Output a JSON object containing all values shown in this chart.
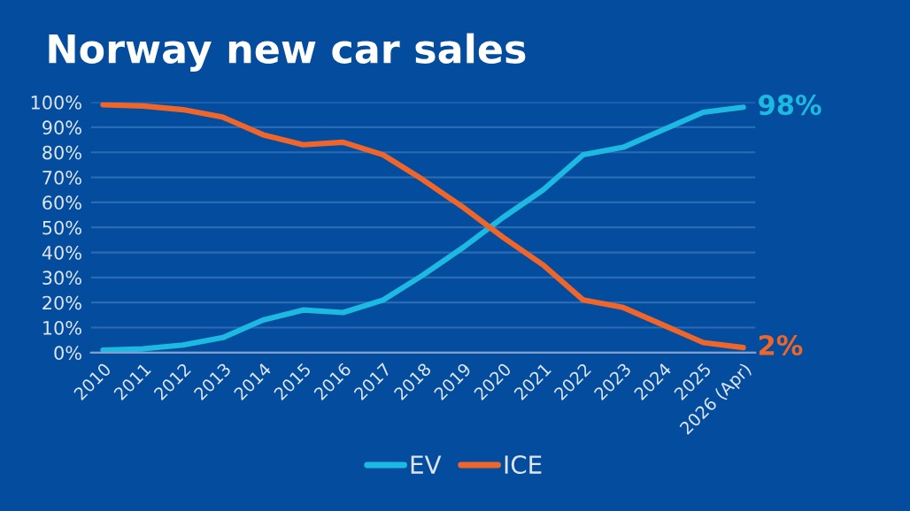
{
  "chart_data": {
    "type": "line",
    "title": "Norway new car sales",
    "categories": [
      "2010",
      "2011",
      "2012",
      "2013",
      "2014",
      "2015",
      "2016",
      "2017",
      "2018",
      "2019",
      "2020",
      "2021",
      "2022",
      "2023",
      "2024",
      "2025",
      "2026 (Apr)"
    ],
    "series": [
      {
        "name": "EV",
        "color": "#1cb9e3",
        "values": [
          1,
          1.5,
          3,
          6,
          13,
          17,
          16,
          21,
          31,
          42,
          54,
          65,
          79,
          82,
          89,
          96,
          98
        ],
        "value_labels": [
          null,
          null,
          null,
          null,
          null,
          null,
          null,
          null,
          null,
          null,
          null,
          null,
          null,
          null,
          null,
          null,
          "98%"
        ]
      },
      {
        "name": "ICE",
        "color": "#f0662a",
        "values": [
          99,
          98.5,
          97,
          94,
          87,
          83,
          84,
          79,
          69,
          58,
          46,
          35,
          21,
          18,
          11,
          4,
          2
        ],
        "value_labels": [
          null,
          null,
          null,
          null,
          null,
          null,
          null,
          null,
          null,
          null,
          null,
          null,
          null,
          null,
          null,
          null,
          "2%"
        ]
      }
    ],
    "ylim": [
      0,
      100
    ],
    "yticks": [
      {
        "value": 0,
        "label": "0%"
      },
      {
        "value": 10,
        "label": "10%"
      },
      {
        "value": 20,
        "label": "20%"
      },
      {
        "value": 30,
        "label": "30%"
      },
      {
        "value": 40,
        "label": "40%"
      },
      {
        "value": 50,
        "label": "50%"
      },
      {
        "value": 60,
        "label": "60%"
      },
      {
        "value": 70,
        "label": "70%"
      },
      {
        "value": 80,
        "label": "80%"
      },
      {
        "value": 90,
        "label": "90%"
      },
      {
        "value": 100,
        "label": "100%"
      }
    ],
    "grid": "y",
    "legend": "bottom",
    "marker": "none",
    "line_style": "solid"
  }
}
